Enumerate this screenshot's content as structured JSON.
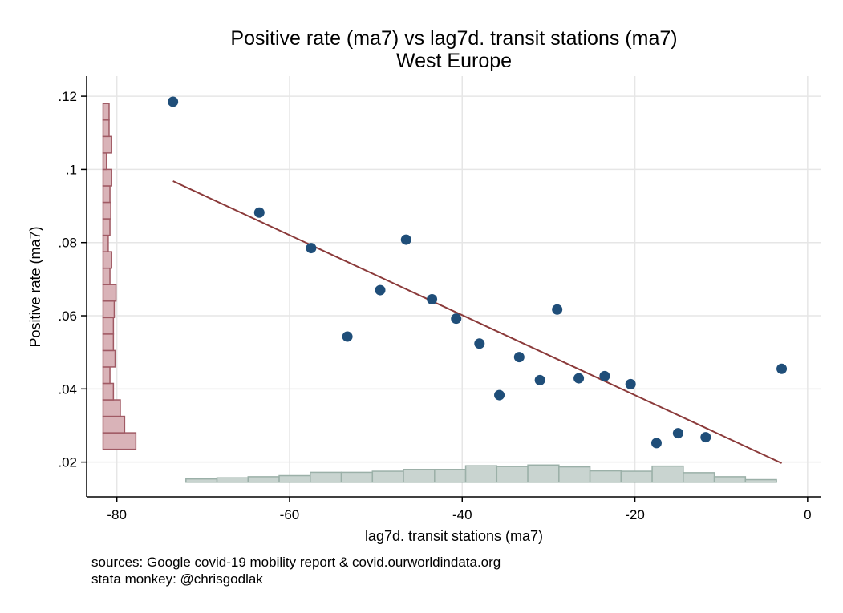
{
  "chart_data": {
    "type": "scatter",
    "title": "Positive rate (ma7) vs lag7d. transit stations (ma7)",
    "subtitle": "West Europe",
    "xlabel": "lag7d. transit stations (ma7)",
    "ylabel": "Positive rate (ma7)",
    "xlim": [
      -83.5,
      1.5
    ],
    "ylim": [
      0.0105,
      0.1255
    ],
    "x_ticks": [
      -80,
      -60,
      -40,
      -20,
      0
    ],
    "x_tick_labels": [
      "-80",
      "-60",
      "-40",
      "-20",
      "0"
    ],
    "y_ticks": [
      0.02,
      0.04,
      0.06,
      0.08,
      0.1,
      0.12
    ],
    "y_tick_labels": [
      ".02",
      ".04",
      ".06",
      ".08",
      ".1",
      ".12"
    ],
    "grid": true,
    "colors": {
      "points": "#1f4e79",
      "fit_line": "#8b3a3a",
      "x_hist_fill": "#c9d4d0",
      "x_hist_stroke": "#9bb0a8",
      "y_hist_fill": "#d9b3b8",
      "y_hist_stroke": "#a05a64",
      "grid": "#e6e6e6"
    },
    "points": [
      {
        "x": -73.5,
        "y": 0.1185
      },
      {
        "x": -63.5,
        "y": 0.0882
      },
      {
        "x": -57.5,
        "y": 0.0785
      },
      {
        "x": -53.3,
        "y": 0.0543
      },
      {
        "x": -49.5,
        "y": 0.067
      },
      {
        "x": -46.5,
        "y": 0.0808
      },
      {
        "x": -43.5,
        "y": 0.0645
      },
      {
        "x": -40.7,
        "y": 0.0592
      },
      {
        "x": -38.0,
        "y": 0.0524
      },
      {
        "x": -35.7,
        "y": 0.0383
      },
      {
        "x": -33.4,
        "y": 0.0487
      },
      {
        "x": -31.0,
        "y": 0.0424
      },
      {
        "x": -29.0,
        "y": 0.0617
      },
      {
        "x": -26.5,
        "y": 0.0429
      },
      {
        "x": -23.5,
        "y": 0.0435
      },
      {
        "x": -20.5,
        "y": 0.0413
      },
      {
        "x": -17.5,
        "y": 0.0252
      },
      {
        "x": -15.0,
        "y": 0.0279
      },
      {
        "x": -11.8,
        "y": 0.0268
      },
      {
        "x": -3.0,
        "y": 0.0455
      }
    ],
    "fit_line": {
      "x": [
        -73.5,
        -3.0
      ],
      "y": [
        0.0968,
        0.0197
      ]
    },
    "x_histogram": {
      "edges": [
        -72,
        -68.4,
        -64.8,
        -61.2,
        -57.6,
        -54,
        -50.4,
        -46.8,
        -43.2,
        -39.6,
        -36,
        -32.4,
        -28.8,
        -25.2,
        -21.6,
        -18,
        -14.4,
        -10.8,
        -7.2,
        -3.6
      ],
      "heights": [
        0.9,
        1.2,
        1.5,
        1.8,
        2.7,
        2.7,
        3.0,
        3.5,
        3.5,
        4.5,
        4.3,
        4.7,
        4.2,
        3.1,
        3.0,
        4.4,
        2.6,
        1.5,
        0.7
      ]
    },
    "y_histogram": {
      "edges": [
        0.0235,
        0.028,
        0.0325,
        0.037,
        0.0415,
        0.046,
        0.0505,
        0.055,
        0.0595,
        0.064,
        0.0685,
        0.073,
        0.0775,
        0.082,
        0.0865,
        0.091,
        0.0955,
        0.1,
        0.1045,
        0.109,
        0.1135,
        0.118
      ],
      "widths": [
        3.8,
        2.5,
        2.0,
        1.2,
        0.8,
        1.4,
        1.2,
        1.2,
        1.3,
        1.5,
        0.8,
        1.0,
        0.6,
        0.8,
        0.9,
        0.8,
        1.0,
        0.4,
        1.0,
        0.7,
        0.7
      ]
    }
  },
  "notes": {
    "sources": "sources: Google covid-19 mobility report & covid.ourworldindata.org",
    "credit": "stata monkey: @chrisgodlak"
  }
}
